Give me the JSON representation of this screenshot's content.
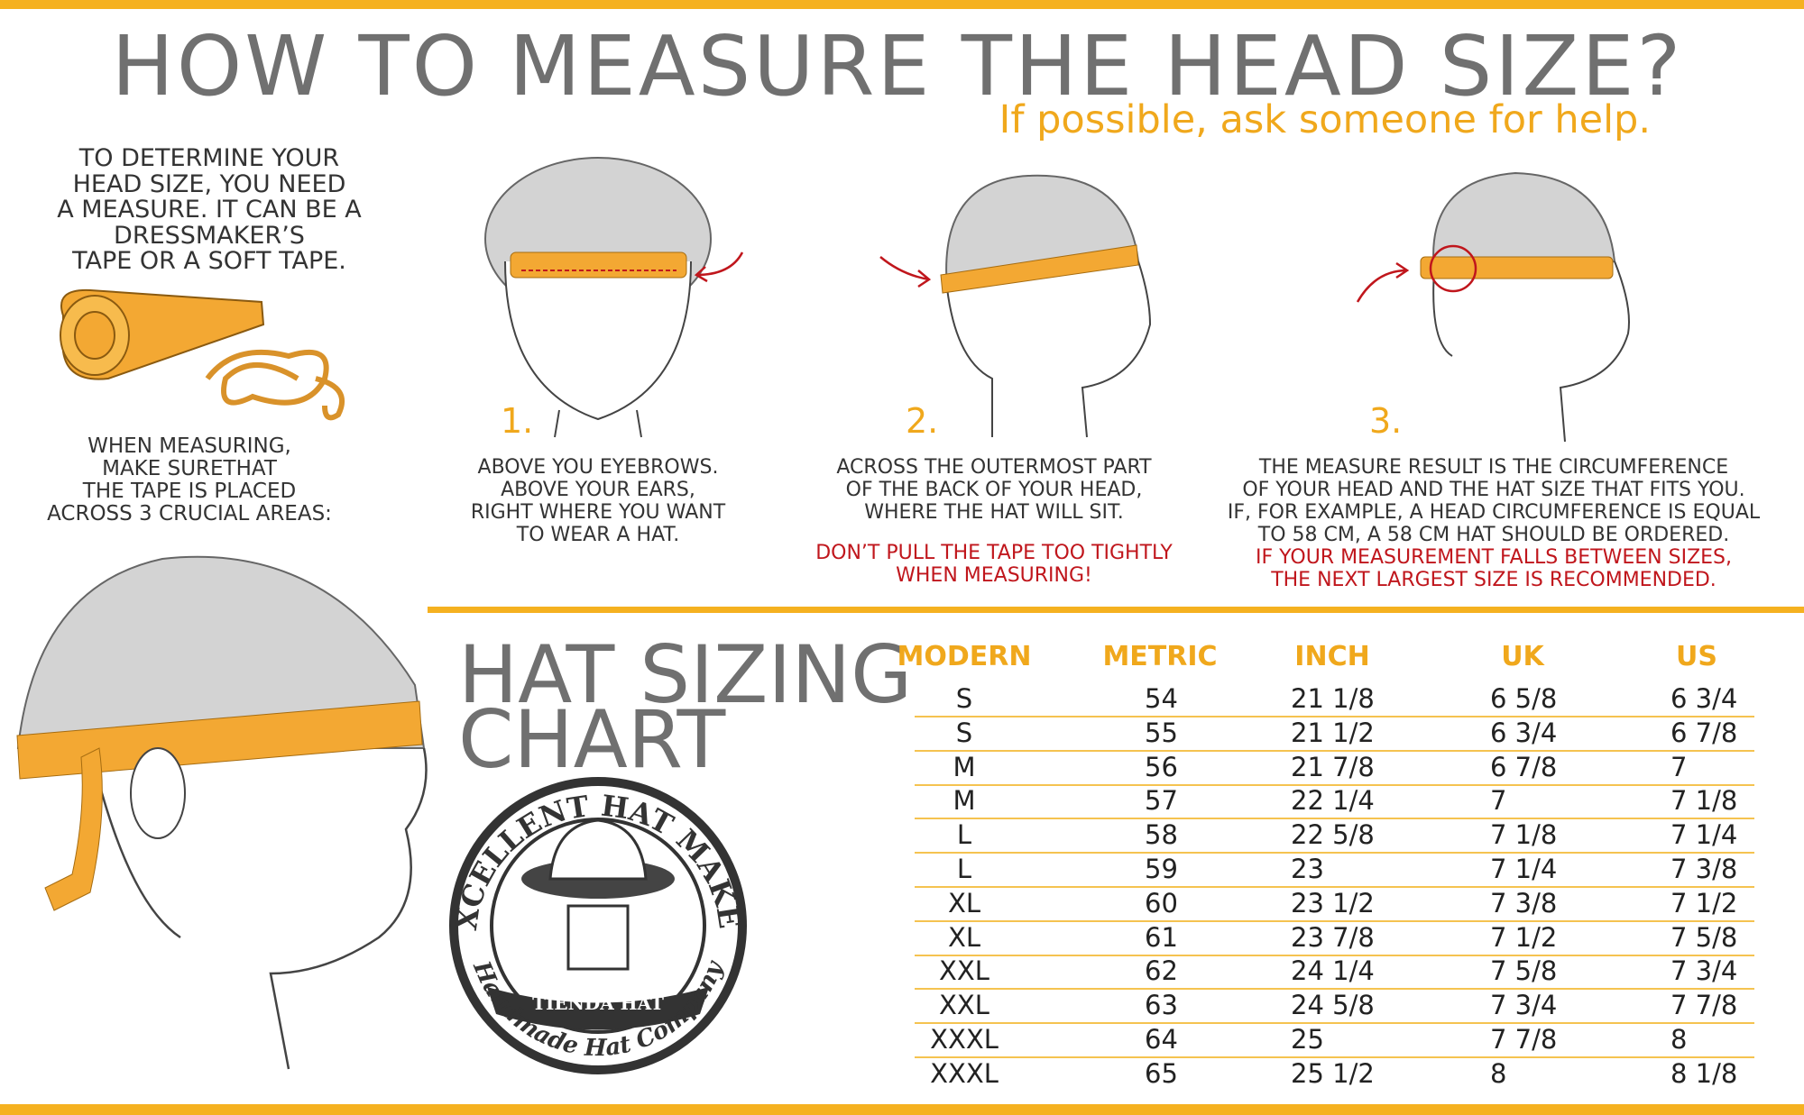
{
  "header": {
    "title": "HOW TO MEASURE THE HEAD SIZE?",
    "subtitle": "If possible, ask someone for help."
  },
  "intro": {
    "lines": [
      "TO DETERMINE YOUR",
      "HEAD SIZE, YOU NEED",
      "A MEASURE. IT CAN BE A",
      "DRESSMAKER’S",
      "TAPE OR A SOFT TAPE."
    ]
  },
  "placement": {
    "lines": [
      "WHEN MEASURING,",
      "MAKE SURETHAT",
      "THE TAPE IS PLACED",
      "ACROSS 3 CRUCIAL AREAS:"
    ]
  },
  "steps": [
    {
      "number": "1.",
      "lines": [
        "ABOVE YOU EYEBROWS.",
        "ABOVE YOUR EARS,",
        "RIGHT WHERE YOU WANT",
        "TO WEAR A HAT."
      ]
    },
    {
      "number": "2.",
      "lines": [
        "ACROSS THE OUTERMOST PART",
        "OF THE BACK OF YOUR HEAD,",
        "WHERE THE HAT WILL SIT."
      ],
      "warning": [
        "DON’T PULL THE TAPE TOO TIGHTLY",
        "WHEN MEASURING!"
      ]
    },
    {
      "number": "3.",
      "lines": [
        "THE MEASURE RESULT IS THE CIRCUMFERENCE",
        "OF YOUR HEAD AND THE  HAT SIZE THAT FITS YOU.",
        "IF, FOR EXAMPLE, A HEAD CIRCUMFERENCE IS EQUAL",
        "TO 58 CM, A 58 CM HAT SHOULD BE ORDERED."
      ],
      "warning": [
        "IF YOUR MEASUREMENT FALLS BETWEEN SIZES,",
        "THE NEXT LARGEST SIZE IS RECOMMENDED."
      ]
    }
  ],
  "chart_title": {
    "lines": [
      "HAT SIZING",
      "CHART"
    ]
  },
  "logo": {
    "top": "EXCELLENT HAT MAKER",
    "band": "TIENDA HAT",
    "bottom": "Handmade Hat Company"
  },
  "table": {
    "columns": [
      "MODERN",
      "METRIC",
      "INCH",
      "UK",
      "US"
    ],
    "rows": [
      [
        "S",
        "54",
        "21 1/8",
        "6 5/8",
        "6 3/4"
      ],
      [
        "S",
        "55",
        "21 1/2",
        "6 3/4",
        "6 7/8"
      ],
      [
        "M",
        "56",
        "21 7/8",
        "6 7/8",
        "7"
      ],
      [
        "M",
        "57",
        "22 1/4",
        "7",
        "7 1/8"
      ],
      [
        "L",
        "58",
        "22 5/8",
        "7 1/8",
        "7 1/4"
      ],
      [
        "L",
        "59",
        "23",
        "7 1/4",
        "7 3/8"
      ],
      [
        "XL",
        "60",
        "23 1/2",
        "7 3/8",
        "7 1/2"
      ],
      [
        "XL",
        "61",
        "23 7/8",
        "7 1/2",
        "7 5/8"
      ],
      [
        "XXL",
        "62",
        "24 1/4",
        "7 5/8",
        "7 3/4"
      ],
      [
        "XXL",
        "63",
        "24 5/8",
        "7 3/4",
        "7 7/8"
      ],
      [
        "XXXL",
        "64",
        "25",
        "7 7/8",
        "8"
      ],
      [
        "XXXL",
        "65",
        "25 1/2",
        "8",
        "8 1/8"
      ]
    ]
  }
}
